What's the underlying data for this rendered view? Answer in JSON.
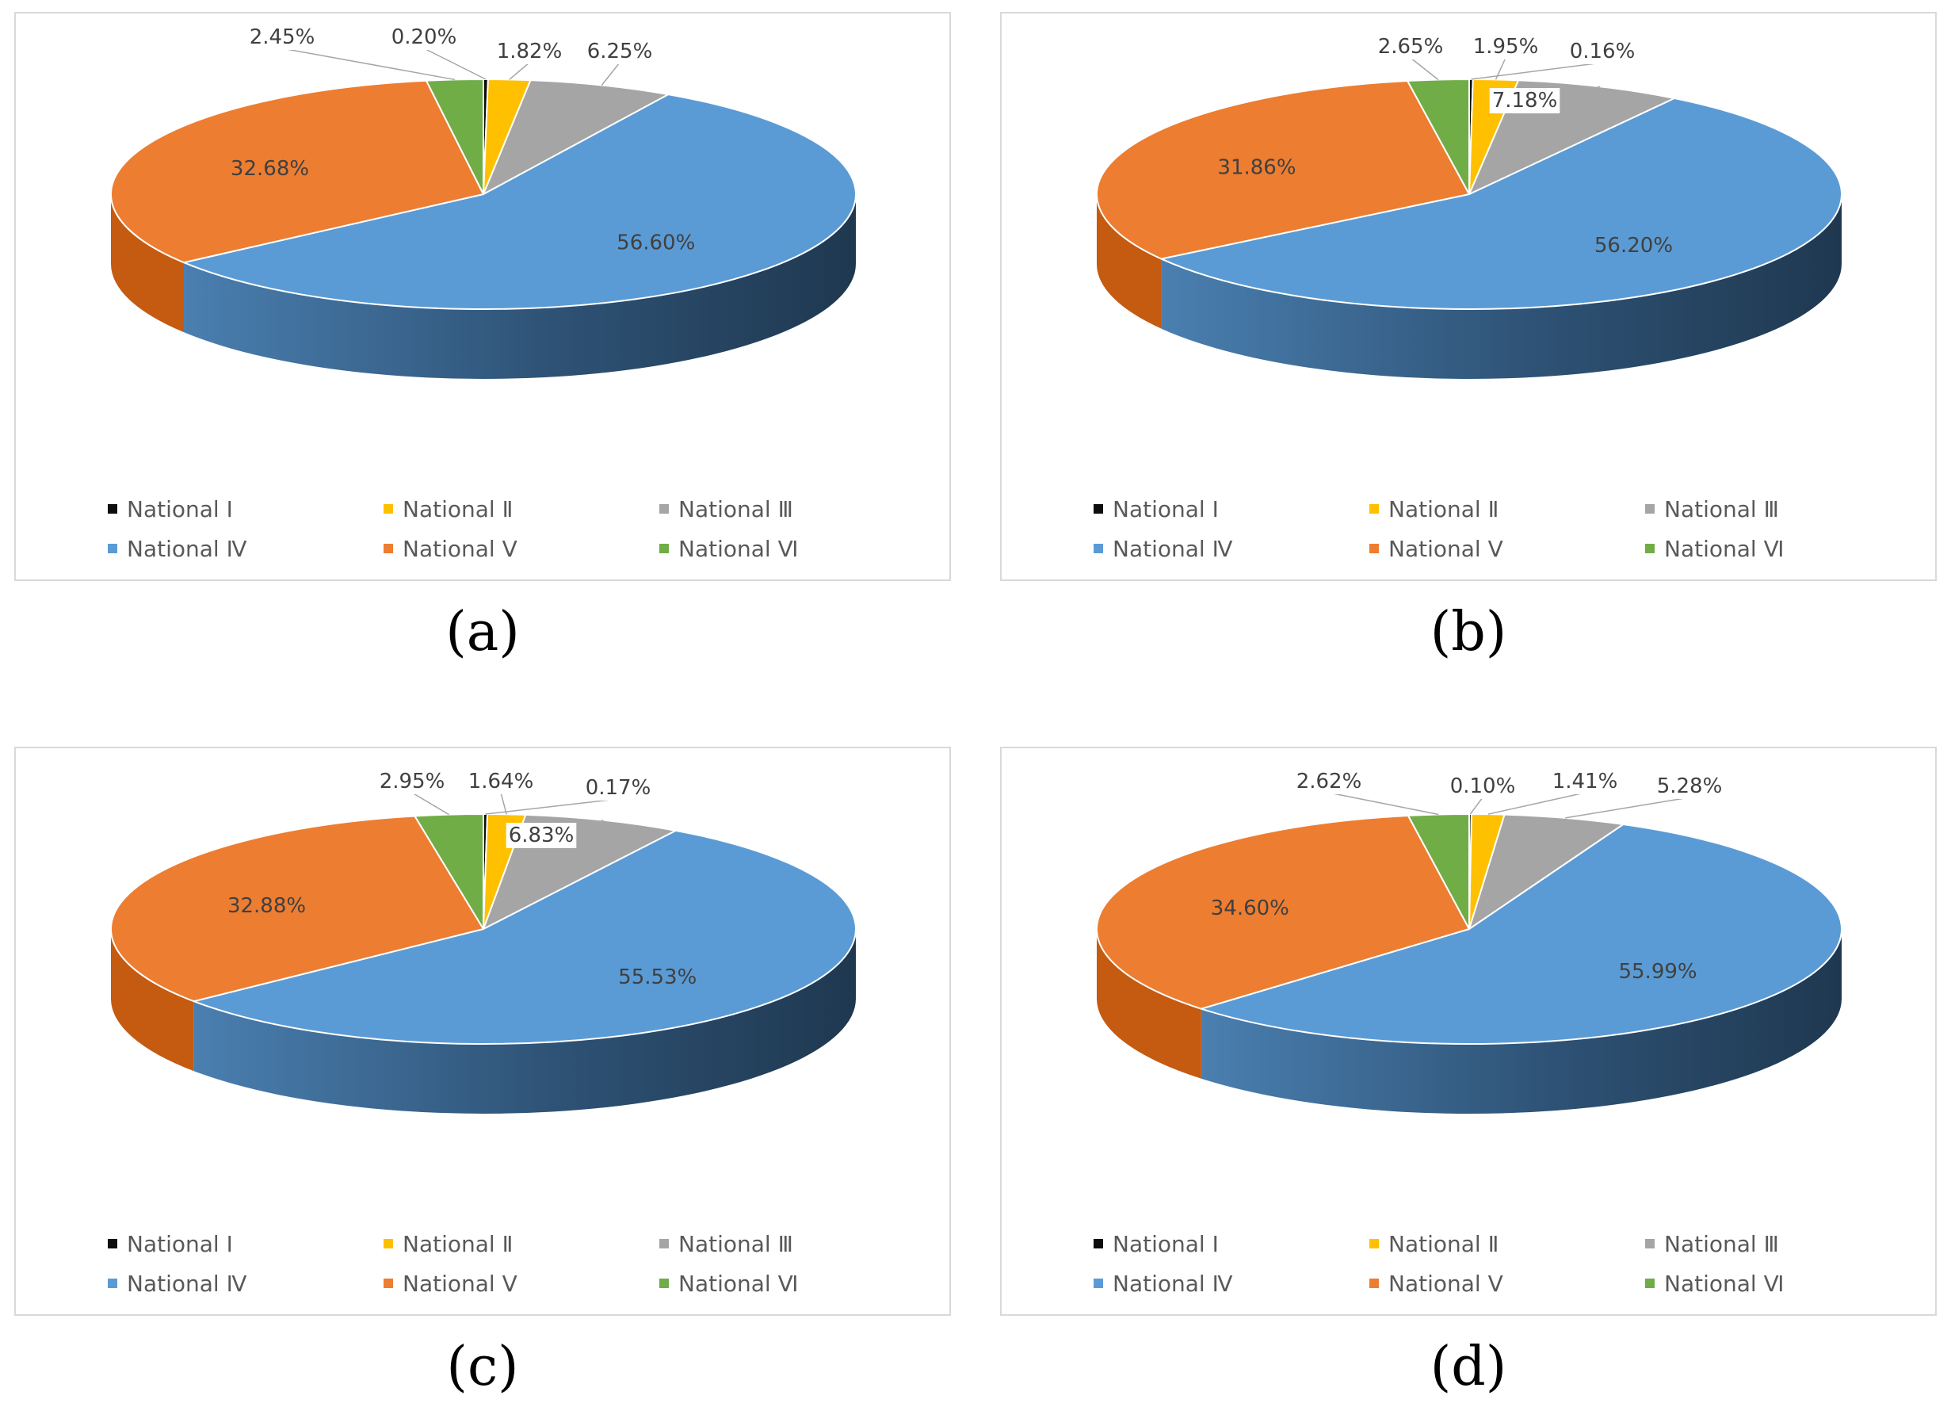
{
  "legend_labels": [
    "National Ⅰ",
    "National Ⅱ",
    "National Ⅲ",
    "National Ⅳ",
    "National Ⅴ",
    "National Ⅵ"
  ],
  "colors": [
    "#0d0d0d",
    "#ffc000",
    "#a5a5a5",
    "#5b9bd5",
    "#ed7d31",
    "#70ad47"
  ],
  "side_colors": [
    "#0d0d0d",
    "#c79500",
    "#7f7f7f",
    "#2b4a66",
    "#c55a11",
    "#548235"
  ],
  "chart_data": [
    {
      "type": "pie",
      "panel": "(a)",
      "labels": [
        "National Ⅰ",
        "National Ⅱ",
        "National Ⅲ",
        "National Ⅳ",
        "National Ⅴ",
        "National Ⅵ"
      ],
      "values": [
        0.2,
        1.82,
        6.25,
        56.6,
        32.68,
        2.45
      ],
      "data_labels": [
        "0.20%",
        "1.82%",
        "6.25%",
        "56.60%",
        "32.68%",
        "2.45%"
      ]
    },
    {
      "type": "pie",
      "panel": "(b)",
      "labels": [
        "National Ⅰ",
        "National Ⅱ",
        "National Ⅲ",
        "National Ⅳ",
        "National Ⅴ",
        "National Ⅵ"
      ],
      "values": [
        0.16,
        1.95,
        7.18,
        56.2,
        31.86,
        2.65
      ],
      "data_labels": [
        "0.16%",
        "1.95%",
        "7.18%",
        "56.20%",
        "31.86%",
        "2.65%"
      ]
    },
    {
      "type": "pie",
      "panel": "(c)",
      "labels": [
        "National Ⅰ",
        "National Ⅱ",
        "National Ⅲ",
        "National Ⅳ",
        "National Ⅴ",
        "National Ⅵ"
      ],
      "values": [
        0.17,
        1.64,
        6.83,
        55.53,
        32.88,
        2.95
      ],
      "data_labels": [
        "0.17%",
        "1.64%",
        "6.83%",
        "55.53%",
        "32.88%",
        "2.95%"
      ]
    },
    {
      "type": "pie",
      "panel": "(d)",
      "labels": [
        "National Ⅰ",
        "National Ⅱ",
        "National Ⅲ",
        "National Ⅳ",
        "National Ⅴ",
        "National Ⅵ"
      ],
      "values": [
        0.1,
        1.41,
        5.28,
        55.99,
        34.6,
        2.62
      ],
      "data_labels": [
        "0.10%",
        "1.41%",
        "5.28%",
        "55.99%",
        "34.60%",
        "2.62%"
      ]
    }
  ]
}
